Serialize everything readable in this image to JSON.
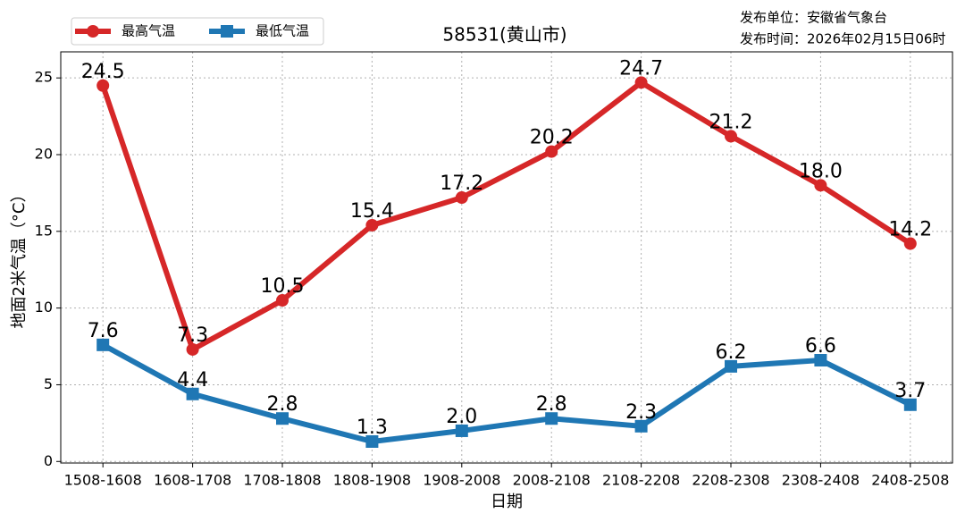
{
  "chart_data": {
    "type": "line",
    "title": "58531(黄山市)",
    "publisher": "发布单位：安徽省气象台",
    "publish_time": "发布时间：2026年02月15日06时",
    "xlabel": "日期",
    "ylabel": "地面2米气温（°C）",
    "categories": [
      "1508-1608",
      "1608-1708",
      "1708-1808",
      "1808-1908",
      "1908-2008",
      "2008-2108",
      "2108-2208",
      "2208-2308",
      "2308-2408",
      "2408-2508"
    ],
    "series": [
      {
        "name": "最高气温",
        "color": "#d62728",
        "marker": "circle",
        "values": [
          24.5,
          7.3,
          10.5,
          15.4,
          17.2,
          20.2,
          24.7,
          21.2,
          18.0,
          14.2
        ],
        "value_labels": [
          "24.5",
          "7.3",
          "10.5",
          "15.4",
          "17.2",
          "20.2",
          "24.7",
          "21.2",
          "18.0",
          "14.2"
        ]
      },
      {
        "name": "最低气温",
        "color": "#1f77b4",
        "marker": "square",
        "values": [
          7.6,
          4.4,
          2.8,
          1.3,
          2.0,
          2.8,
          2.3,
          6.2,
          6.6,
          3.7
        ],
        "value_labels": [
          "7.6",
          "4.4",
          "2.8",
          "1.3",
          "2.0",
          "2.8",
          "2.3",
          "6.2",
          "6.6",
          "3.7"
        ]
      }
    ],
    "ylim": [
      -0.1,
      26.7
    ],
    "yticks": [
      0,
      5,
      10,
      15,
      20,
      25
    ],
    "grid": true,
    "legend": "upper-left"
  }
}
